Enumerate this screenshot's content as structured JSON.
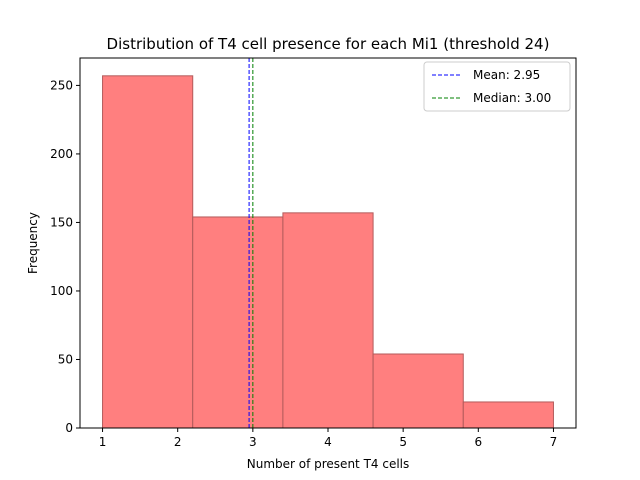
{
  "chart_data": {
    "type": "bar",
    "title": "Distribution of T4 cell presence for each Mi1 (threshold 24)",
    "xlabel": "Number of present T4 cells",
    "ylabel": "Frequency",
    "xlim": [
      0.7,
      7.3
    ],
    "ylim": [
      0,
      270
    ],
    "xticks": [
      "1",
      "2",
      "3",
      "4",
      "5",
      "6",
      "7"
    ],
    "yticks": [
      "0",
      "50",
      "100",
      "150",
      "200",
      "250"
    ],
    "grid": false,
    "legend_position": "top-right",
    "bins": [
      {
        "start": 1.0,
        "end": 2.2,
        "value": 257
      },
      {
        "start": 2.2,
        "end": 3.4,
        "value": 154
      },
      {
        "start": 3.4,
        "end": 4.6,
        "value": 157
      },
      {
        "start": 4.6,
        "end": 5.8,
        "value": 54
      },
      {
        "start": 5.8,
        "end": 7.0,
        "value": 19
      }
    ],
    "bar_color": "#ff7f7f",
    "bar_edge_color": "#b35a5a",
    "reference_lines": [
      {
        "label": "Mean: 2.95",
        "x": 2.95,
        "color": "#0000ff",
        "style": "dashed"
      },
      {
        "label": "Median: 3.00",
        "x": 3.0,
        "color": "#008000",
        "style": "dashed"
      }
    ]
  }
}
